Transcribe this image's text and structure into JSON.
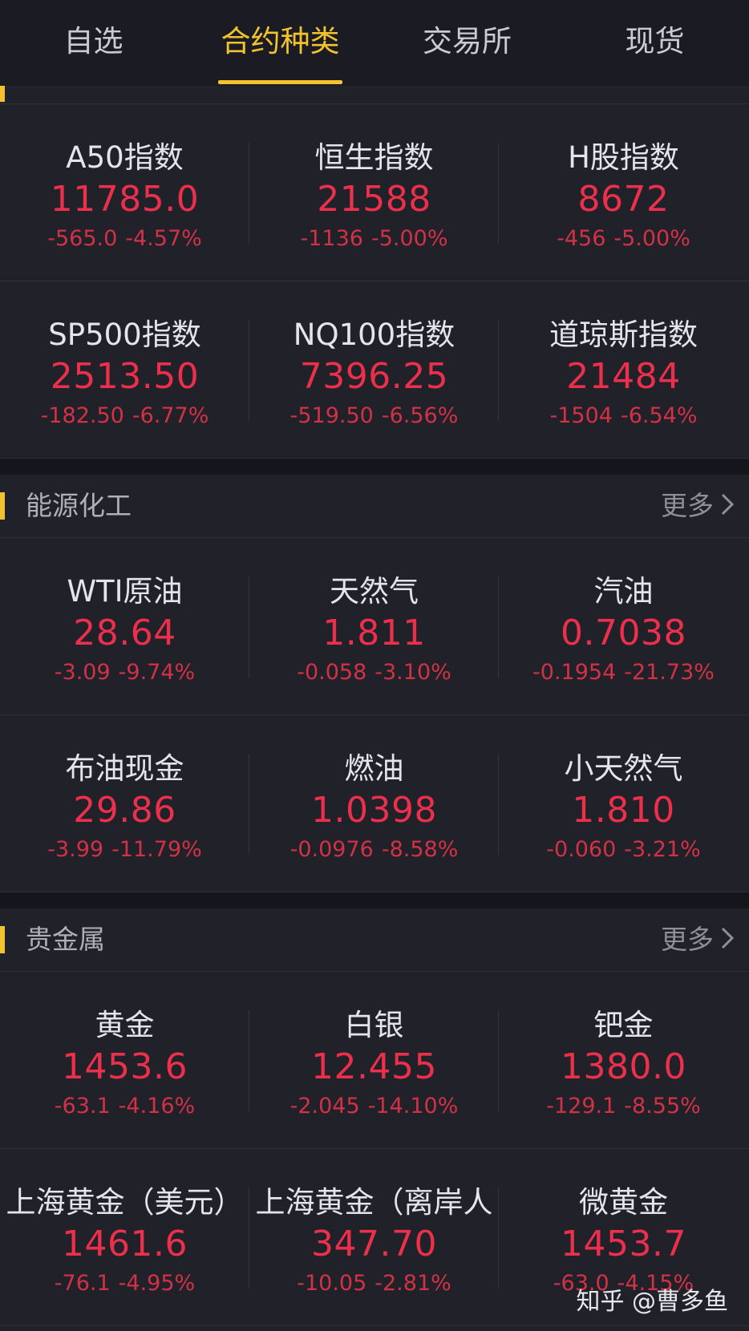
{
  "tabs": [
    "自选",
    "合约种类",
    "交易所",
    "现货"
  ],
  "active_tab": 1,
  "colors": {
    "accent": "#f2c230",
    "down": "#ec2f4b",
    "background": "#202129"
  },
  "sections": [
    {
      "title": "",
      "more": "",
      "rows": [
        [
          {
            "name": "A50指数",
            "price": "11785.0",
            "change": "-565.0",
            "pct": "-4.57%"
          },
          {
            "name": "恒生指数",
            "price": "21588",
            "change": "-1136",
            "pct": "-5.00%"
          },
          {
            "name": "H股指数",
            "price": "8672",
            "change": "-456",
            "pct": "-5.00%"
          }
        ],
        [
          {
            "name": "SP500指数",
            "price": "2513.50",
            "change": "-182.50",
            "pct": "-6.77%"
          },
          {
            "name": "NQ100指数",
            "price": "7396.25",
            "change": "-519.50",
            "pct": "-6.56%"
          },
          {
            "name": "道琼斯指数",
            "price": "21484",
            "change": "-1504",
            "pct": "-6.54%"
          }
        ]
      ]
    },
    {
      "title": "能源化工",
      "more": "更多",
      "rows": [
        [
          {
            "name": "WTI原油",
            "price": "28.64",
            "change": "-3.09",
            "pct": "-9.74%"
          },
          {
            "name": "天然气",
            "price": "1.811",
            "change": "-0.058",
            "pct": "-3.10%"
          },
          {
            "name": "汽油",
            "price": "0.7038",
            "change": "-0.1954",
            "pct": "-21.73%"
          }
        ],
        [
          {
            "name": "布油现金",
            "price": "29.86",
            "change": "-3.99",
            "pct": "-11.79%"
          },
          {
            "name": "燃油",
            "price": "1.0398",
            "change": "-0.0976",
            "pct": "-8.58%"
          },
          {
            "name": "小天然气",
            "price": "1.810",
            "change": "-0.060",
            "pct": "-3.21%"
          }
        ]
      ]
    },
    {
      "title": "贵金属",
      "more": "更多",
      "rows": [
        [
          {
            "name": "黄金",
            "price": "1453.6",
            "change": "-63.1",
            "pct": "-4.16%"
          },
          {
            "name": "白银",
            "price": "12.455",
            "change": "-2.045",
            "pct": "-14.10%"
          },
          {
            "name": "钯金",
            "price": "1380.0",
            "change": "-129.1",
            "pct": "-8.55%"
          }
        ],
        [
          {
            "name": "上海黄金（美元）",
            "price": "1461.6",
            "change": "-76.1",
            "pct": "-4.95%"
          },
          {
            "name": "上海黄金（离岸人",
            "price": "347.70",
            "change": "-10.05",
            "pct": "-2.81%"
          },
          {
            "name": "微黄金",
            "price": "1453.7",
            "change": "-63.0",
            "pct": "-4.15%"
          }
        ]
      ]
    }
  ],
  "watermark": "知乎 @曹多鱼"
}
